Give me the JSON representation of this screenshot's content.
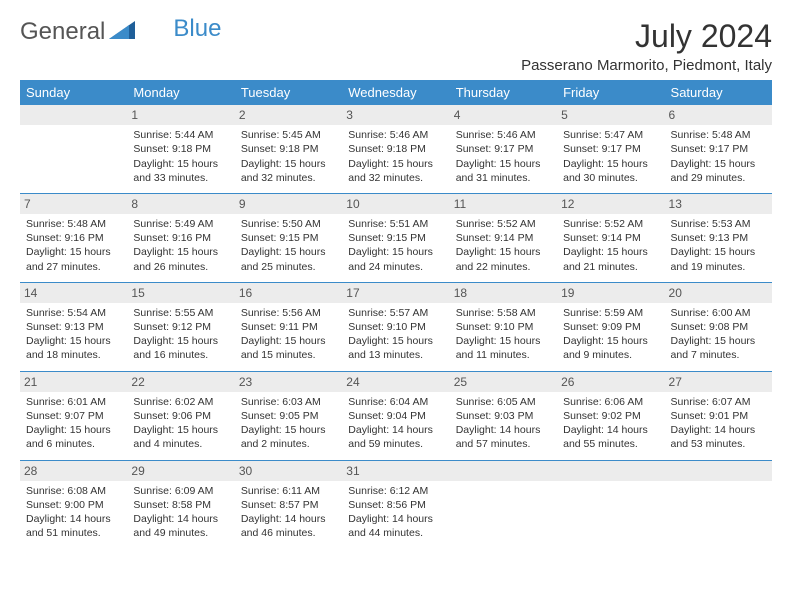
{
  "logo": {
    "text1": "General",
    "text2": "Blue"
  },
  "title": "July 2024",
  "location": "Passerano Marmorito, Piedmont, Italy",
  "colors": {
    "header_bg": "#3b8bc9",
    "header_text": "#ffffff",
    "daynum_bg": "#ececec",
    "border": "#3b8bc9",
    "body_text": "#333333"
  },
  "weekdays": [
    "Sunday",
    "Monday",
    "Tuesday",
    "Wednesday",
    "Thursday",
    "Friday",
    "Saturday"
  ],
  "weeks": [
    [
      {
        "day": "",
        "lines": []
      },
      {
        "day": "1",
        "lines": [
          "Sunrise: 5:44 AM",
          "Sunset: 9:18 PM",
          "Daylight: 15 hours and 33 minutes."
        ]
      },
      {
        "day": "2",
        "lines": [
          "Sunrise: 5:45 AM",
          "Sunset: 9:18 PM",
          "Daylight: 15 hours and 32 minutes."
        ]
      },
      {
        "day": "3",
        "lines": [
          "Sunrise: 5:46 AM",
          "Sunset: 9:18 PM",
          "Daylight: 15 hours and 32 minutes."
        ]
      },
      {
        "day": "4",
        "lines": [
          "Sunrise: 5:46 AM",
          "Sunset: 9:17 PM",
          "Daylight: 15 hours and 31 minutes."
        ]
      },
      {
        "day": "5",
        "lines": [
          "Sunrise: 5:47 AM",
          "Sunset: 9:17 PM",
          "Daylight: 15 hours and 30 minutes."
        ]
      },
      {
        "day": "6",
        "lines": [
          "Sunrise: 5:48 AM",
          "Sunset: 9:17 PM",
          "Daylight: 15 hours and 29 minutes."
        ]
      }
    ],
    [
      {
        "day": "7",
        "lines": [
          "Sunrise: 5:48 AM",
          "Sunset: 9:16 PM",
          "Daylight: 15 hours and 27 minutes."
        ]
      },
      {
        "day": "8",
        "lines": [
          "Sunrise: 5:49 AM",
          "Sunset: 9:16 PM",
          "Daylight: 15 hours and 26 minutes."
        ]
      },
      {
        "day": "9",
        "lines": [
          "Sunrise: 5:50 AM",
          "Sunset: 9:15 PM",
          "Daylight: 15 hours and 25 minutes."
        ]
      },
      {
        "day": "10",
        "lines": [
          "Sunrise: 5:51 AM",
          "Sunset: 9:15 PM",
          "Daylight: 15 hours and 24 minutes."
        ]
      },
      {
        "day": "11",
        "lines": [
          "Sunrise: 5:52 AM",
          "Sunset: 9:14 PM",
          "Daylight: 15 hours and 22 minutes."
        ]
      },
      {
        "day": "12",
        "lines": [
          "Sunrise: 5:52 AM",
          "Sunset: 9:14 PM",
          "Daylight: 15 hours and 21 minutes."
        ]
      },
      {
        "day": "13",
        "lines": [
          "Sunrise: 5:53 AM",
          "Sunset: 9:13 PM",
          "Daylight: 15 hours and 19 minutes."
        ]
      }
    ],
    [
      {
        "day": "14",
        "lines": [
          "Sunrise: 5:54 AM",
          "Sunset: 9:13 PM",
          "Daylight: 15 hours and 18 minutes."
        ]
      },
      {
        "day": "15",
        "lines": [
          "Sunrise: 5:55 AM",
          "Sunset: 9:12 PM",
          "Daylight: 15 hours and 16 minutes."
        ]
      },
      {
        "day": "16",
        "lines": [
          "Sunrise: 5:56 AM",
          "Sunset: 9:11 PM",
          "Daylight: 15 hours and 15 minutes."
        ]
      },
      {
        "day": "17",
        "lines": [
          "Sunrise: 5:57 AM",
          "Sunset: 9:10 PM",
          "Daylight: 15 hours and 13 minutes."
        ]
      },
      {
        "day": "18",
        "lines": [
          "Sunrise: 5:58 AM",
          "Sunset: 9:10 PM",
          "Daylight: 15 hours and 11 minutes."
        ]
      },
      {
        "day": "19",
        "lines": [
          "Sunrise: 5:59 AM",
          "Sunset: 9:09 PM",
          "Daylight: 15 hours and 9 minutes."
        ]
      },
      {
        "day": "20",
        "lines": [
          "Sunrise: 6:00 AM",
          "Sunset: 9:08 PM",
          "Daylight: 15 hours and 7 minutes."
        ]
      }
    ],
    [
      {
        "day": "21",
        "lines": [
          "Sunrise: 6:01 AM",
          "Sunset: 9:07 PM",
          "Daylight: 15 hours and 6 minutes."
        ]
      },
      {
        "day": "22",
        "lines": [
          "Sunrise: 6:02 AM",
          "Sunset: 9:06 PM",
          "Daylight: 15 hours and 4 minutes."
        ]
      },
      {
        "day": "23",
        "lines": [
          "Sunrise: 6:03 AM",
          "Sunset: 9:05 PM",
          "Daylight: 15 hours and 2 minutes."
        ]
      },
      {
        "day": "24",
        "lines": [
          "Sunrise: 6:04 AM",
          "Sunset: 9:04 PM",
          "Daylight: 14 hours and 59 minutes."
        ]
      },
      {
        "day": "25",
        "lines": [
          "Sunrise: 6:05 AM",
          "Sunset: 9:03 PM",
          "Daylight: 14 hours and 57 minutes."
        ]
      },
      {
        "day": "26",
        "lines": [
          "Sunrise: 6:06 AM",
          "Sunset: 9:02 PM",
          "Daylight: 14 hours and 55 minutes."
        ]
      },
      {
        "day": "27",
        "lines": [
          "Sunrise: 6:07 AM",
          "Sunset: 9:01 PM",
          "Daylight: 14 hours and 53 minutes."
        ]
      }
    ],
    [
      {
        "day": "28",
        "lines": [
          "Sunrise: 6:08 AM",
          "Sunset: 9:00 PM",
          "Daylight: 14 hours and 51 minutes."
        ]
      },
      {
        "day": "29",
        "lines": [
          "Sunrise: 6:09 AM",
          "Sunset: 8:58 PM",
          "Daylight: 14 hours and 49 minutes."
        ]
      },
      {
        "day": "30",
        "lines": [
          "Sunrise: 6:11 AM",
          "Sunset: 8:57 PM",
          "Daylight: 14 hours and 46 minutes."
        ]
      },
      {
        "day": "31",
        "lines": [
          "Sunrise: 6:12 AM",
          "Sunset: 8:56 PM",
          "Daylight: 14 hours and 44 minutes."
        ]
      },
      {
        "day": "",
        "lines": []
      },
      {
        "day": "",
        "lines": []
      },
      {
        "day": "",
        "lines": []
      }
    ]
  ]
}
